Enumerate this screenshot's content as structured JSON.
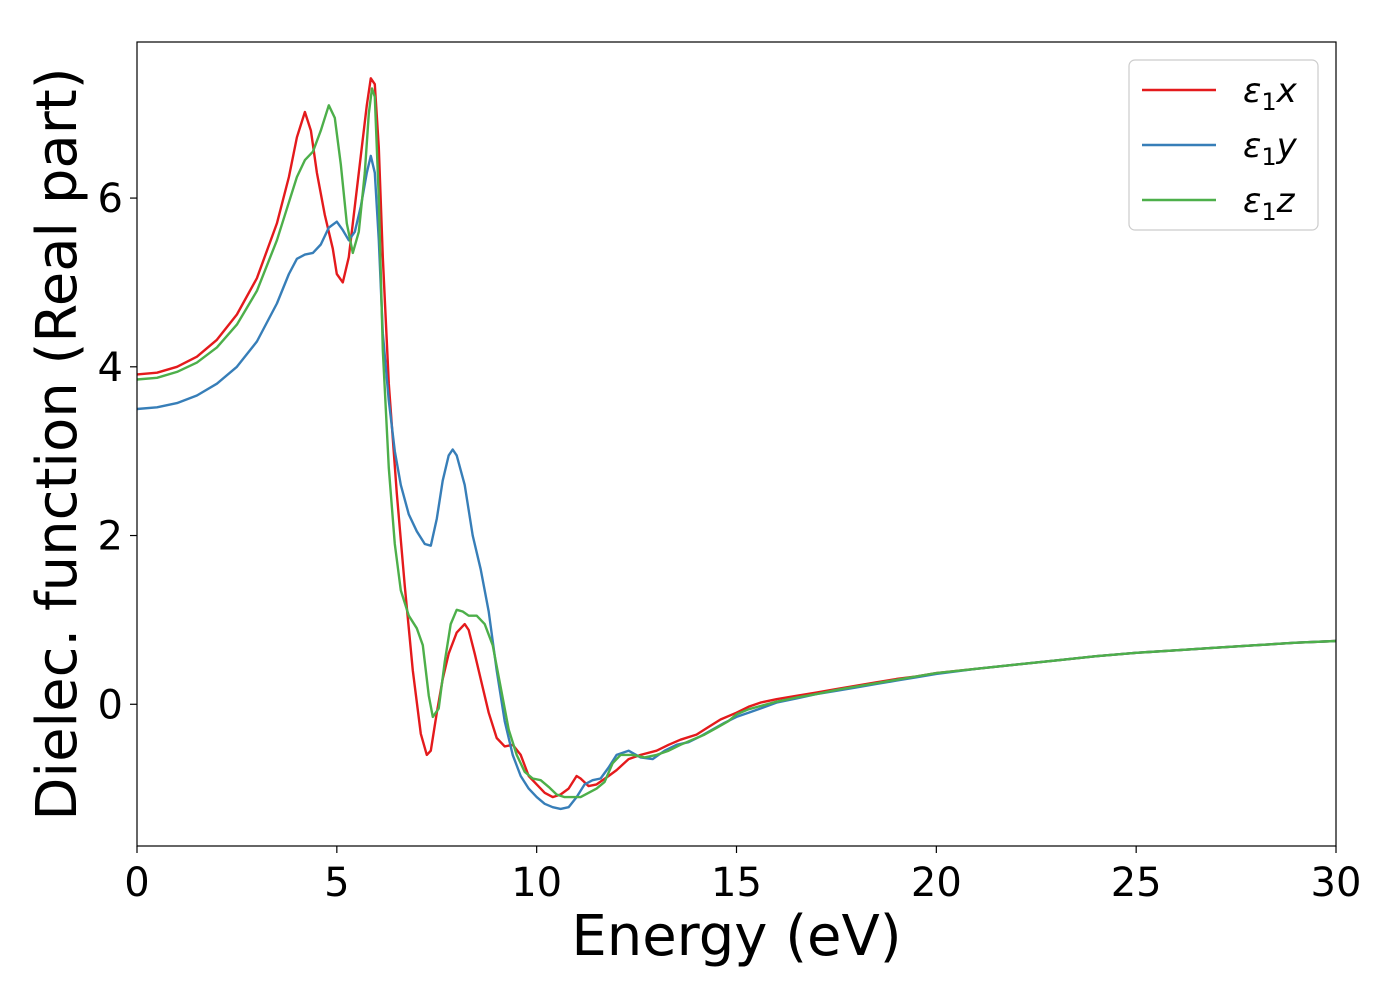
{
  "chart_data": {
    "type": "line",
    "title": "",
    "xlabel": "Energy (eV)",
    "ylabel": "Dielec. function (Real part)",
    "xlim": [
      0,
      30
    ],
    "ylim": [
      -1.68,
      7.85
    ],
    "xticks": [
      0,
      5,
      10,
      15,
      20,
      25,
      30
    ],
    "yticks": [
      0,
      2,
      4,
      6
    ],
    "grid": false,
    "legend_position": "top-right",
    "series": [
      {
        "name": "ε1x",
        "legend": {
          "symbol": "ε",
          "sub": "1",
          "var": "x"
        },
        "color": "#e41a1c",
        "x": [
          0,
          0.5,
          1,
          1.5,
          2,
          2.5,
          3,
          3.5,
          3.8,
          4.0,
          4.2,
          4.35,
          4.5,
          4.7,
          4.9,
          5.0,
          5.15,
          5.3,
          5.45,
          5.6,
          5.75,
          5.85,
          5.95,
          6.05,
          6.15,
          6.3,
          6.5,
          6.7,
          6.9,
          7.1,
          7.25,
          7.35,
          7.5,
          7.65,
          7.8,
          8.0,
          8.2,
          8.3,
          8.45,
          8.6,
          8.8,
          9.0,
          9.2,
          9.4,
          9.6,
          9.8,
          10.0,
          10.2,
          10.4,
          10.6,
          10.8,
          11.0,
          11.1,
          11.3,
          11.5,
          11.8,
          12.0,
          12.3,
          12.6,
          13.0,
          13.3,
          13.6,
          14.0,
          14.3,
          14.6,
          15.0,
          15.3,
          15.6,
          16.0,
          16.5,
          17.0,
          17.5,
          18.0,
          18.5,
          19.0,
          19.5,
          20.0,
          21.0,
          22.0,
          23.0,
          24.0,
          25.0,
          26.0,
          27.0,
          28.0,
          29.0,
          30.0
        ],
        "y": [
          3.91,
          3.93,
          4.0,
          4.12,
          4.32,
          4.62,
          5.05,
          5.7,
          6.25,
          6.72,
          7.02,
          6.8,
          6.3,
          5.8,
          5.4,
          5.1,
          5.0,
          5.3,
          5.9,
          6.5,
          7.1,
          7.42,
          7.35,
          6.6,
          5.3,
          3.8,
          2.5,
          1.4,
          0.4,
          -0.35,
          -0.6,
          -0.55,
          -0.1,
          0.3,
          0.6,
          0.85,
          0.95,
          0.88,
          0.6,
          0.3,
          -0.1,
          -0.4,
          -0.5,
          -0.48,
          -0.6,
          -0.85,
          -0.95,
          -1.05,
          -1.1,
          -1.07,
          -1.0,
          -0.85,
          -0.88,
          -0.97,
          -0.95,
          -0.85,
          -0.78,
          -0.65,
          -0.6,
          -0.55,
          -0.48,
          -0.42,
          -0.36,
          -0.27,
          -0.18,
          -0.1,
          -0.03,
          0.02,
          0.06,
          0.1,
          0.14,
          0.18,
          0.22,
          0.26,
          0.3,
          0.33,
          0.37,
          0.42,
          0.47,
          0.52,
          0.57,
          0.61,
          0.64,
          0.67,
          0.7,
          0.73,
          0.75
        ]
      },
      {
        "name": "ε1y",
        "legend": {
          "symbol": "ε",
          "sub": "1",
          "var": "y"
        },
        "color": "#377eb8",
        "x": [
          0,
          0.5,
          1,
          1.5,
          2,
          2.5,
          3,
          3.5,
          3.8,
          4.0,
          4.2,
          4.4,
          4.6,
          4.8,
          5.0,
          5.15,
          5.3,
          5.45,
          5.6,
          5.75,
          5.85,
          5.95,
          6.05,
          6.15,
          6.3,
          6.45,
          6.6,
          6.8,
          7.0,
          7.2,
          7.35,
          7.5,
          7.65,
          7.8,
          7.9,
          8.0,
          8.2,
          8.4,
          8.6,
          8.8,
          9.0,
          9.2,
          9.4,
          9.6,
          9.8,
          10.0,
          10.2,
          10.4,
          10.6,
          10.8,
          11.0,
          11.2,
          11.4,
          11.6,
          11.8,
          12.0,
          12.3,
          12.6,
          12.9,
          13.2,
          13.5,
          13.8,
          14.1,
          14.4,
          14.7,
          15.0,
          15.3,
          15.6,
          16.0,
          16.5,
          17.0,
          17.5,
          18.0,
          18.5,
          19.0,
          19.5,
          20.0,
          21.0,
          22.0,
          23.0,
          24.0,
          25.0,
          26.0,
          27.0,
          28.0,
          29.0,
          30.0
        ],
        "y": [
          3.5,
          3.52,
          3.57,
          3.66,
          3.8,
          4.0,
          4.3,
          4.75,
          5.1,
          5.28,
          5.33,
          5.35,
          5.45,
          5.65,
          5.72,
          5.62,
          5.5,
          5.6,
          5.9,
          6.3,
          6.5,
          6.3,
          5.5,
          4.4,
          3.6,
          3.0,
          2.6,
          2.25,
          2.05,
          1.9,
          1.88,
          2.2,
          2.65,
          2.95,
          3.02,
          2.95,
          2.6,
          2.0,
          1.6,
          1.1,
          0.4,
          -0.2,
          -0.6,
          -0.85,
          -1.0,
          -1.1,
          -1.18,
          -1.22,
          -1.24,
          -1.22,
          -1.1,
          -0.95,
          -0.9,
          -0.88,
          -0.75,
          -0.6,
          -0.55,
          -0.63,
          -0.65,
          -0.55,
          -0.48,
          -0.45,
          -0.38,
          -0.3,
          -0.22,
          -0.15,
          -0.1,
          -0.05,
          0.02,
          0.07,
          0.12,
          0.16,
          0.2,
          0.24,
          0.28,
          0.32,
          0.36,
          0.42,
          0.47,
          0.52,
          0.57,
          0.61,
          0.64,
          0.67,
          0.7,
          0.73,
          0.75
        ]
      },
      {
        "name": "ε1z",
        "legend": {
          "symbol": "ε",
          "sub": "1",
          "var": "z"
        },
        "color": "#4daf4a",
        "x": [
          0,
          0.5,
          1,
          1.5,
          2,
          2.5,
          3,
          3.5,
          3.8,
          4.0,
          4.2,
          4.4,
          4.6,
          4.8,
          4.95,
          5.1,
          5.25,
          5.4,
          5.55,
          5.7,
          5.8,
          5.88,
          5.95,
          6.05,
          6.15,
          6.3,
          6.45,
          6.6,
          6.8,
          7.0,
          7.15,
          7.3,
          7.4,
          7.55,
          7.7,
          7.85,
          8.0,
          8.15,
          8.3,
          8.5,
          8.7,
          8.9,
          9.1,
          9.3,
          9.5,
          9.7,
          9.9,
          10.1,
          10.3,
          10.5,
          10.7,
          10.9,
          11.1,
          11.3,
          11.5,
          11.7,
          11.9,
          12.1,
          12.4,
          12.7,
          13.0,
          13.3,
          13.6,
          13.9,
          14.2,
          14.5,
          14.8,
          15.0,
          15.3,
          15.6,
          16.0,
          16.5,
          17.0,
          17.5,
          18.0,
          18.5,
          19.0,
          19.5,
          20.0,
          21.0,
          22.0,
          23.0,
          24.0,
          25.0,
          26.0,
          27.0,
          28.0,
          29.0,
          30.0
        ],
        "y": [
          3.85,
          3.87,
          3.94,
          4.05,
          4.23,
          4.5,
          4.9,
          5.5,
          5.95,
          6.25,
          6.45,
          6.55,
          6.8,
          7.1,
          6.95,
          6.4,
          5.7,
          5.35,
          5.6,
          6.3,
          7.0,
          7.3,
          7.2,
          6.0,
          4.2,
          2.8,
          1.9,
          1.35,
          1.05,
          0.9,
          0.7,
          0.1,
          -0.15,
          -0.05,
          0.5,
          0.95,
          1.12,
          1.1,
          1.05,
          1.05,
          0.95,
          0.7,
          0.2,
          -0.3,
          -0.6,
          -0.8,
          -0.88,
          -0.9,
          -0.98,
          -1.07,
          -1.1,
          -1.1,
          -1.1,
          -1.05,
          -1.0,
          -0.92,
          -0.7,
          -0.6,
          -0.6,
          -0.63,
          -0.6,
          -0.55,
          -0.48,
          -0.42,
          -0.36,
          -0.28,
          -0.2,
          -0.12,
          -0.06,
          -0.02,
          0.03,
          0.08,
          0.12,
          0.17,
          0.21,
          0.25,
          0.29,
          0.33,
          0.37,
          0.42,
          0.47,
          0.52,
          0.57,
          0.61,
          0.64,
          0.67,
          0.7,
          0.73,
          0.75
        ]
      }
    ]
  }
}
